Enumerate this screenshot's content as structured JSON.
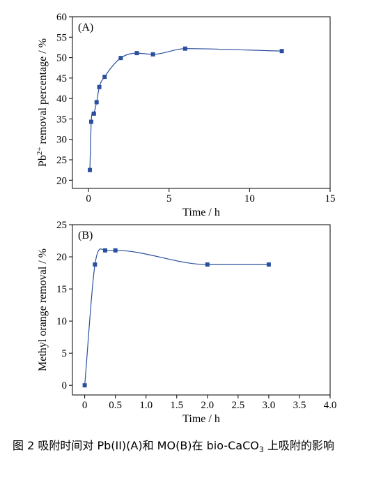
{
  "chart_data": [
    {
      "type": "scatter",
      "panel_label": "(A)",
      "xlabel": "Time / h",
      "ylabel_parts": {
        "base": "Pb",
        "sup": "2+",
        "rest": " removal percentage / %"
      },
      "xlim": [
        -1,
        15
      ],
      "ylim": [
        18,
        60
      ],
      "xticks": [
        0,
        5,
        10,
        15
      ],
      "yticks": [
        20,
        25,
        30,
        35,
        40,
        45,
        50,
        55,
        60
      ],
      "xtick_labels": [
        "0",
        "5",
        "10",
        "15"
      ],
      "ytick_labels": [
        "20",
        "25",
        "30",
        "35",
        "40",
        "45",
        "50",
        "55",
        "60"
      ],
      "series": [
        {
          "x": [
            0.083,
            0.167,
            0.333,
            0.5,
            0.667,
            1,
            2,
            3,
            4,
            6,
            12
          ],
          "y": [
            22.5,
            34.3,
            36.3,
            39.1,
            42.8,
            45.3,
            49.9,
            51.1,
            50.8,
            52.2,
            51.6
          ]
        }
      ],
      "color": "#2a4f9e",
      "grid": false
    },
    {
      "type": "scatter",
      "panel_label": "(B)",
      "xlabel": "Time / h",
      "ylabel": "Methyl orange removal / %",
      "xlim": [
        -0.2,
        4.0
      ],
      "ylim": [
        -1.5,
        25
      ],
      "xticks": [
        0,
        0.5,
        1.0,
        1.5,
        2.0,
        2.5,
        3.0,
        3.5,
        4.0
      ],
      "yticks": [
        0,
        5,
        10,
        15,
        20,
        25
      ],
      "xtick_labels": [
        "0",
        "0.5",
        "1.0",
        "1.5",
        "2.0",
        "2.5",
        "3.0",
        "3.5",
        "4.0"
      ],
      "ytick_labels": [
        "0",
        "5",
        "10",
        "15",
        "20",
        "25"
      ],
      "series": [
        {
          "x": [
            0,
            0.167,
            0.333,
            0.5,
            2,
            3
          ],
          "y": [
            0,
            18.8,
            21.0,
            21.0,
            18.8,
            18.8
          ]
        }
      ],
      "color": "#2a4f9e",
      "grid": false
    }
  ],
  "caption": {
    "prefix": "图 2  吸附时间对 Pb(II)(A)和 MO(B)在 bio-CaCO",
    "sub": "3",
    "suffix": " 上吸附的影响"
  }
}
